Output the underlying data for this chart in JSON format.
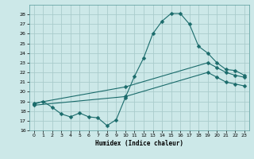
{
  "xlabel": "Humidex (Indice chaleur)",
  "bg_color": "#cce8e8",
  "grid_color": "#aacccc",
  "line_color": "#1a6b6b",
  "xlim": [
    -0.5,
    23.5
  ],
  "ylim": [
    16,
    29
  ],
  "yticks": [
    16,
    17,
    18,
    19,
    20,
    21,
    22,
    23,
    24,
    25,
    26,
    27,
    28
  ],
  "xticks": [
    0,
    1,
    2,
    3,
    4,
    5,
    6,
    7,
    8,
    9,
    10,
    11,
    12,
    13,
    14,
    15,
    16,
    17,
    18,
    19,
    20,
    21,
    22,
    23
  ],
  "line1_x": [
    0,
    1,
    2,
    3,
    4,
    5,
    6,
    7,
    8,
    9,
    10,
    11,
    12,
    13,
    14,
    15,
    16,
    17,
    18,
    19,
    20,
    21,
    22,
    23
  ],
  "line1_y": [
    18.7,
    19.0,
    18.4,
    17.7,
    17.4,
    17.8,
    17.4,
    17.3,
    16.5,
    17.1,
    19.4,
    21.6,
    23.5,
    26.0,
    27.3,
    28.1,
    28.1,
    27.0,
    24.7,
    24.0,
    23.0,
    22.3,
    22.2,
    21.7
  ],
  "line2_x": [
    0,
    10,
    19,
    20,
    21,
    22,
    23
  ],
  "line2_y": [
    18.8,
    20.5,
    23.0,
    22.5,
    22.0,
    21.7,
    21.5
  ],
  "line3_x": [
    0,
    10,
    19,
    20,
    21,
    22,
    23
  ],
  "line3_y": [
    18.6,
    19.5,
    22.0,
    21.5,
    21.0,
    20.8,
    20.6
  ],
  "marker": "D",
  "markersize": 2.5
}
